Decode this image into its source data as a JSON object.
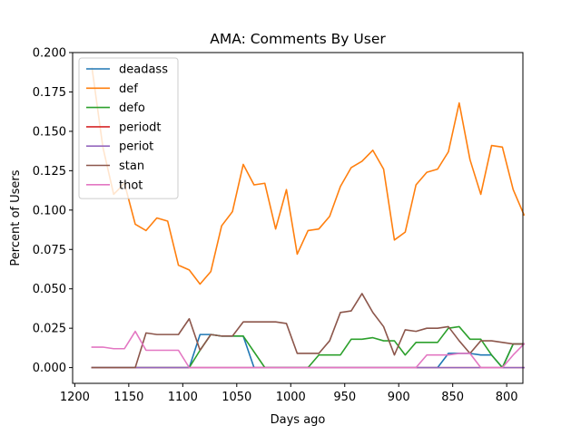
{
  "chart_data": {
    "type": "line",
    "title": "AMA: Comments By User",
    "xlabel": "Days ago",
    "ylabel": "Percent of Users",
    "xlim": [
      1202,
      785
    ],
    "ylim": [
      -0.01,
      0.2
    ],
    "xticks": [
      1200,
      1150,
      1100,
      1050,
      1000,
      950,
      900,
      850,
      800
    ],
    "yticks": [
      0.0,
      0.025,
      0.05,
      0.075,
      0.1,
      0.125,
      0.15,
      0.175,
      0.2
    ],
    "ytick_labels": [
      "0.000",
      "0.025",
      "0.050",
      "0.075",
      "0.100",
      "0.125",
      "0.150",
      "0.175",
      "0.200"
    ],
    "grid": false,
    "legend_position": "top-left",
    "x": [
      1184,
      1174,
      1164,
      1154,
      1144,
      1134,
      1124,
      1114,
      1104,
      1094,
      1084,
      1074,
      1064,
      1054,
      1044,
      1034,
      1024,
      1014,
      1004,
      994,
      984,
      974,
      964,
      954,
      944,
      934,
      924,
      914,
      904,
      894,
      884,
      874,
      864,
      854,
      844,
      834,
      824,
      814,
      804,
      794,
      784
    ],
    "series": [
      {
        "name": "deadass",
        "color": "#1f77b4",
        "values": [
          0,
          0,
          0,
          0,
          0,
          0,
          0,
          0,
          0,
          0,
          0.021,
          0.021,
          0.02,
          0.02,
          0.02,
          0,
          0,
          0,
          0,
          0,
          0,
          0,
          0,
          0,
          0,
          0,
          0,
          0,
          0,
          0,
          0,
          0,
          0,
          0.009,
          0.009,
          0.009,
          0.008,
          0.008,
          0,
          0.015,
          0.015
        ]
      },
      {
        "name": "def",
        "color": "#ff7f0e",
        "values": [
          0.19,
          0.14,
          0.11,
          0.117,
          0.091,
          0.087,
          0.095,
          0.093,
          0.065,
          0.062,
          0.053,
          0.061,
          0.09,
          0.099,
          0.129,
          0.116,
          0.117,
          0.088,
          0.113,
          0.072,
          0.087,
          0.088,
          0.096,
          0.115,
          0.127,
          0.131,
          0.138,
          0.126,
          0.081,
          0.086,
          0.116,
          0.124,
          0.126,
          0.137,
          0.168,
          0.132,
          0.11,
          0.141,
          0.14,
          0.113,
          0.097
        ]
      },
      {
        "name": "defo",
        "color": "#2ca02c",
        "values": [
          0,
          0,
          0,
          0,
          0,
          0,
          0,
          0,
          0,
          0,
          0.011,
          0.021,
          0.02,
          0.02,
          0.02,
          0.01,
          0,
          0,
          0,
          0,
          0,
          0.008,
          0.008,
          0.008,
          0.018,
          0.018,
          0.019,
          0.017,
          0.017,
          0.008,
          0.016,
          0.016,
          0.016,
          0.025,
          0.026,
          0.018,
          0.018,
          0.008,
          0,
          0.015,
          0.015
        ]
      },
      {
        "name": "periodt",
        "color": "#d62728",
        "values": [
          0,
          0,
          0,
          0,
          0,
          0,
          0,
          0,
          0,
          0,
          0,
          0,
          0,
          0,
          0,
          0,
          0,
          0,
          0,
          0,
          0,
          0,
          0,
          0,
          0,
          0,
          0,
          0,
          0,
          0,
          0,
          0,
          0,
          0,
          0,
          0,
          0,
          0,
          0,
          0,
          0
        ]
      },
      {
        "name": "periot",
        "color": "#9467bd",
        "values": [
          0,
          0,
          0,
          0,
          0,
          0,
          0,
          0,
          0,
          0,
          0,
          0,
          0,
          0,
          0,
          0,
          0,
          0,
          0,
          0,
          0,
          0,
          0,
          0,
          0,
          0,
          0,
          0,
          0,
          0,
          0,
          0,
          0,
          0,
          0,
          0,
          0,
          0,
          0,
          0,
          0
        ]
      },
      {
        "name": "stan",
        "color": "#8c564b",
        "values": [
          0,
          0,
          0,
          0,
          0,
          0.022,
          0.021,
          0.021,
          0.021,
          0.031,
          0.011,
          0.021,
          0.02,
          0.02,
          0.029,
          0.029,
          0.029,
          0.029,
          0.028,
          0.009,
          0.009,
          0.009,
          0.017,
          0.035,
          0.036,
          0.047,
          0.035,
          0.026,
          0.008,
          0.024,
          0.023,
          0.025,
          0.025,
          0.026,
          0.017,
          0.009,
          0.017,
          0.017,
          0.016,
          0.015,
          0.015
        ]
      },
      {
        "name": "thot",
        "color": "#e377c2",
        "values": [
          0.013,
          0.013,
          0.012,
          0.012,
          0.023,
          0.011,
          0.011,
          0.011,
          0.011,
          0,
          0,
          0,
          0,
          0,
          0,
          0,
          0,
          0,
          0,
          0,
          0,
          0,
          0,
          0,
          0,
          0,
          0,
          0,
          0,
          0,
          0,
          0.008,
          0.008,
          0.008,
          0.009,
          0.009,
          0,
          0,
          0,
          0.008,
          0.015
        ]
      }
    ]
  }
}
